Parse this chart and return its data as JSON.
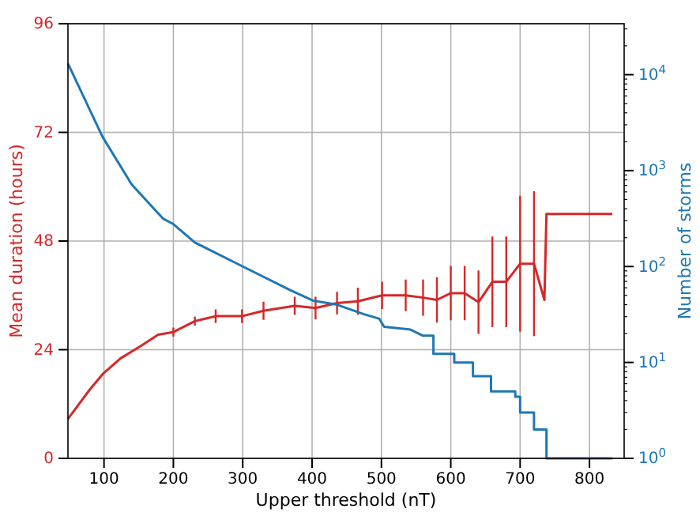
{
  "chart_data": {
    "type": "line",
    "xlabel": "Upper threshold (nT)",
    "ylabel": "Mean duration (hours)",
    "y2label": "Number of storms",
    "xlim": [
      48,
      850
    ],
    "xticks": [
      100,
      200,
      300,
      400,
      500,
      600,
      700,
      800
    ],
    "ylim": [
      0,
      96
    ],
    "yticks": [
      0,
      24,
      48,
      72,
      96
    ],
    "y2lim": [
      1,
      34000
    ],
    "y2ticks": [
      {
        "value": 1,
        "label": "10$^{0}$"
      },
      {
        "value": 10,
        "label": "10$^{1}$"
      },
      {
        "value": 100,
        "label": "10$^{2}$"
      },
      {
        "value": 1000,
        "label": "10$^{3}$"
      },
      {
        "value": 10000,
        "label": "10$^{4}$"
      }
    ],
    "log": "y2",
    "grid": true,
    "series": [
      {
        "color": "#d62728",
        "axis": "y",
        "x": [
          48,
          79,
          98,
          124,
          155,
          178,
          200,
          231,
          261,
          299,
          330,
          375,
          405,
          436,
          466,
          501,
          535,
          560,
          580,
          600,
          620,
          640,
          660,
          680,
          700,
          720,
          735,
          738,
          833
        ],
        "values": [
          8.7,
          15.1,
          18.6,
          22.1,
          25,
          27.3,
          27.9,
          30.3,
          31.4,
          31.4,
          32.6,
          33.7,
          33.2,
          34.3,
          34.7,
          36,
          36,
          35.5,
          35,
          36.5,
          36.5,
          34.5,
          39,
          39,
          43,
          43,
          35,
          54,
          54
        ],
        "errors": [
          null,
          null,
          null,
          null,
          null,
          null,
          1,
          1,
          1.5,
          1.5,
          2,
          2,
          2.5,
          2.5,
          3,
          3,
          3.5,
          4,
          5,
          6,
          6,
          7,
          10,
          10,
          15,
          16,
          null,
          null,
          null
        ]
      },
      {
        "color": "#1f77b4",
        "axis": "y2",
        "x": [
          48,
          98,
          140,
          185,
          200,
          231,
          299,
          368,
          402,
          436,
          474,
          497,
          504,
          542,
          560,
          575,
          575,
          605,
          605,
          632,
          632,
          658,
          658,
          693,
          693,
          700,
          700,
          720,
          720,
          738,
          738,
          833
        ],
        "values": [
          13100,
          2240,
          716,
          316,
          277,
          178,
          101,
          57,
          44,
          40,
          32,
          28.5,
          23.5,
          22,
          19,
          19,
          12.3,
          12.3,
          10,
          10,
          7.2,
          7.2,
          5,
          5,
          4.4,
          4.4,
          3,
          3,
          2,
          2,
          1,
          1
        ]
      }
    ]
  }
}
